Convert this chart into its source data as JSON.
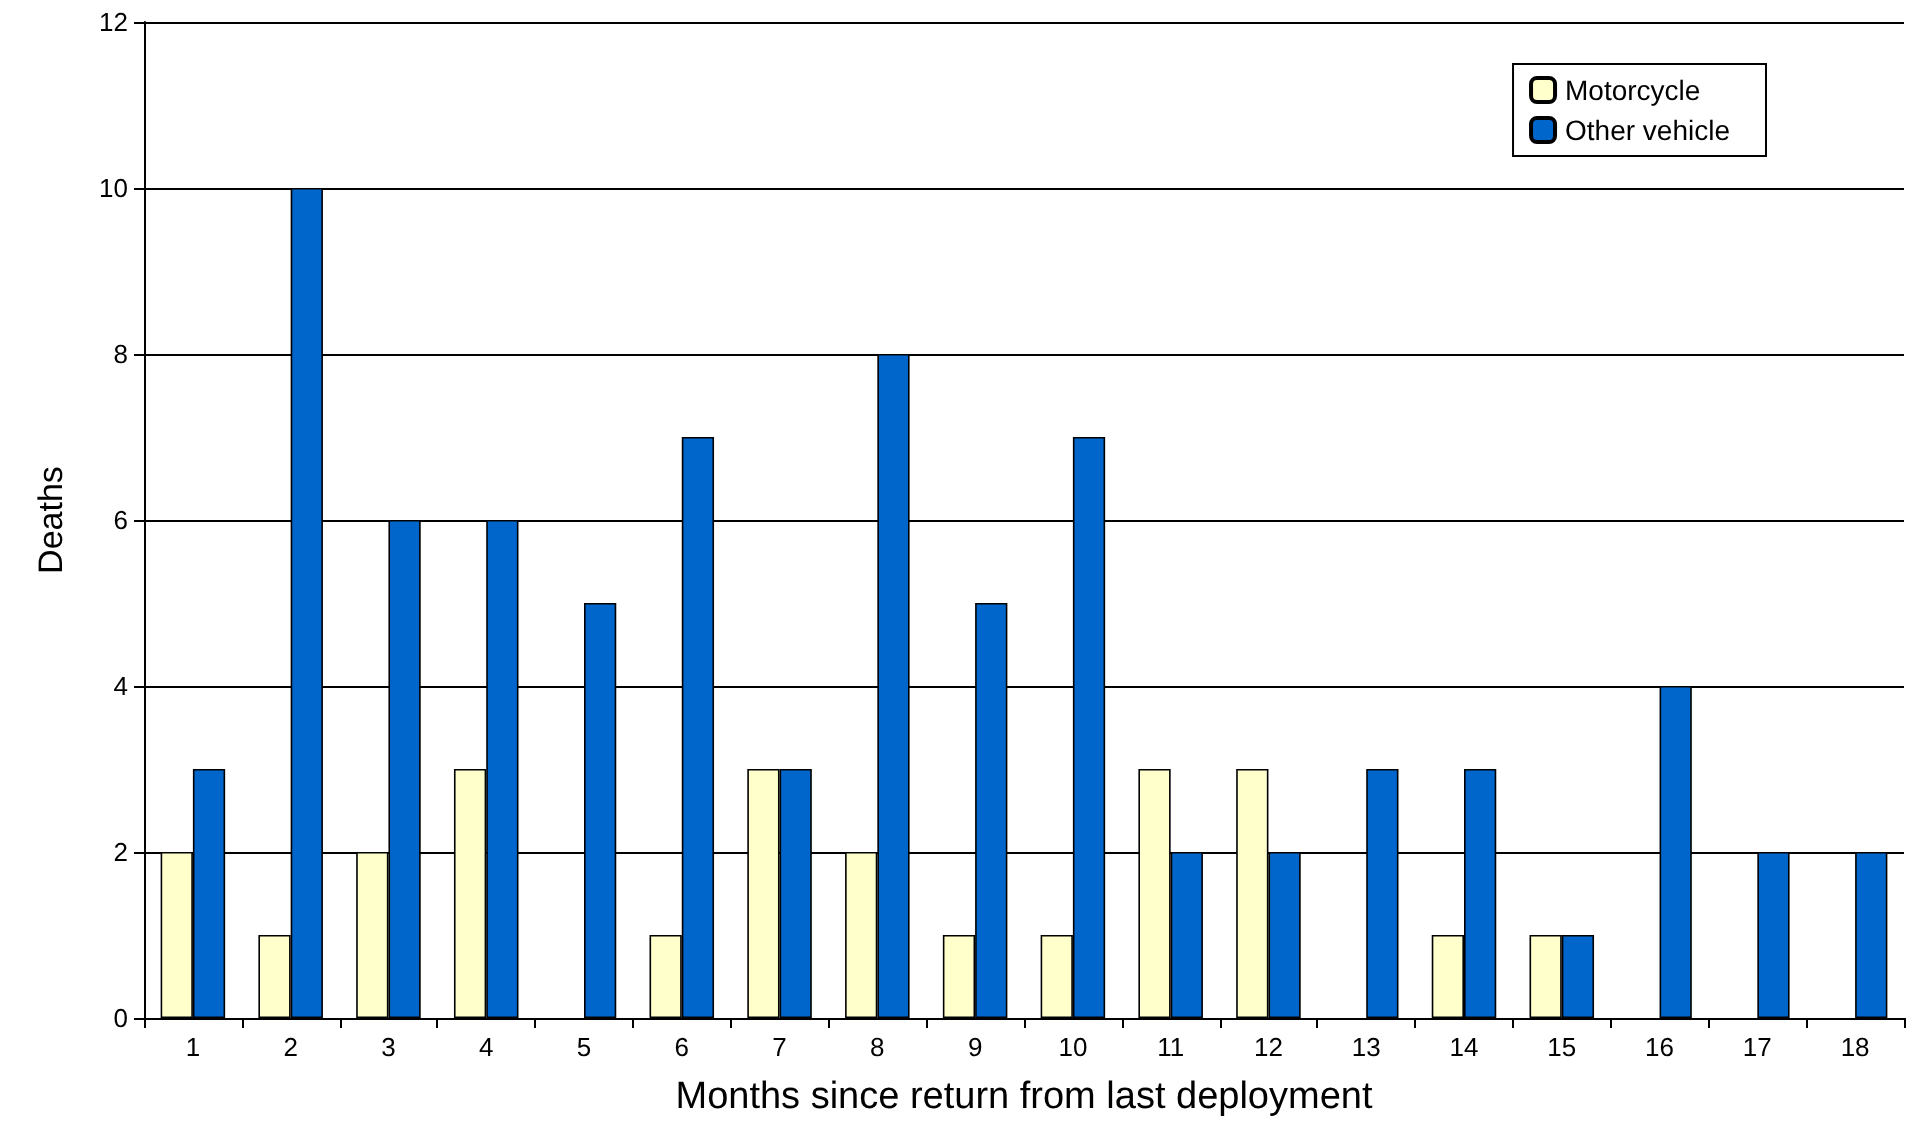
{
  "chart_data": {
    "type": "bar",
    "xlabel": "Months since return from last deployment",
    "ylabel": "Deaths",
    "categories": [
      "1",
      "2",
      "3",
      "4",
      "5",
      "6",
      "7",
      "8",
      "9",
      "10",
      "11",
      "12",
      "13",
      "14",
      "15",
      "16",
      "17",
      "18"
    ],
    "series": [
      {
        "name": "Motorcycle",
        "color": "#ffffcc",
        "values": [
          2,
          1,
          2,
          3,
          0,
          1,
          3,
          2,
          1,
          1,
          3,
          3,
          0,
          1,
          1,
          0,
          0,
          0
        ]
      },
      {
        "name": "Other vehicle",
        "color": "#0066cc",
        "values": [
          3,
          10,
          6,
          6,
          5,
          7,
          3,
          8,
          5,
          7,
          2,
          2,
          3,
          3,
          1,
          4,
          2,
          2
        ]
      }
    ],
    "ylim": [
      0,
      12
    ],
    "yticks": [
      0,
      2,
      4,
      6,
      8,
      10,
      12
    ],
    "grid": "y",
    "legend": "top right"
  }
}
